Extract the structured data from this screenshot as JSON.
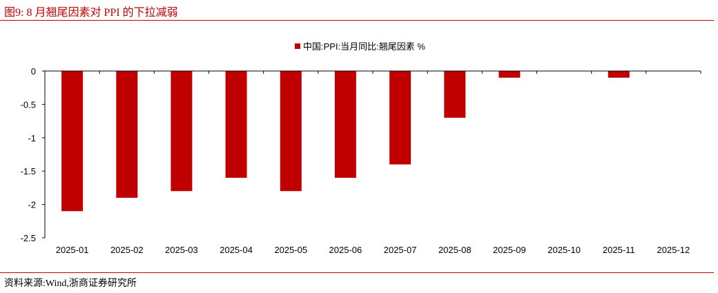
{
  "figure": {
    "title": "图9:   8 月翘尾因素对 PPI 的下拉减弱",
    "source": "资料来源:Wind,浙商证券研究所",
    "accent_color": "#c00000"
  },
  "chart_data": {
    "type": "bar",
    "categories": [
      "2025-01",
      "2025-02",
      "2025-03",
      "2025-04",
      "2025-05",
      "2025-06",
      "2025-07",
      "2025-08",
      "2025-09",
      "2025-10",
      "2025-11",
      "2025-12"
    ],
    "series": [
      {
        "name": "中国:PPI:当月同比:翘尾因素 %",
        "color": "#c00000",
        "values": [
          -2.1,
          -1.9,
          -1.8,
          -1.6,
          -1.8,
          -1.6,
          -1.4,
          -0.7,
          -0.1,
          0,
          -0.1,
          0
        ]
      }
    ],
    "ylim": [
      -2.5,
      0
    ],
    "yticks": [
      "0",
      "-0.5",
      "-1",
      "-1.5",
      "-2",
      "-2.5"
    ],
    "ytick_values": [
      0,
      -0.5,
      -1,
      -1.5,
      -2,
      -2.5
    ],
    "legend_position": "top-center",
    "grid": false
  }
}
